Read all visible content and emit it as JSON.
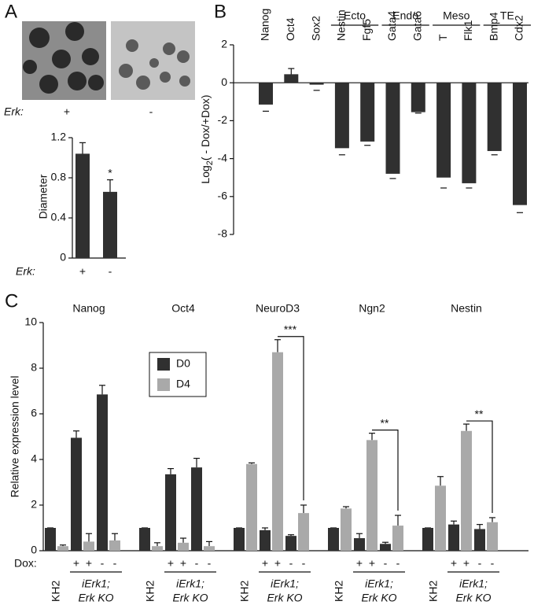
{
  "chart_data": [
    {
      "panel": "A",
      "type": "bar",
      "xlabel": "Erk:",
      "ylabel": "Diameter",
      "categories": [
        "+",
        "-"
      ],
      "values": [
        1.04,
        0.66
      ],
      "errors": [
        0.11,
        0.12
      ],
      "color": "#303030",
      "ylim": [
        0,
        1.2
      ],
      "yticks": [
        0,
        0.4,
        0.8,
        1.2
      ],
      "annotations": [
        null,
        "*"
      ]
    },
    {
      "panel": "B",
      "type": "bar",
      "ylabel_parts": [
        "Log",
        "2",
        "( - Dox/+Dox)"
      ],
      "categories": [
        "Nanog",
        "Oct4",
        "Sox2",
        "Nestin",
        "Fgf5",
        "Gata4",
        "Gata6",
        "T",
        "Flk1",
        "Bmp4",
        "Cdx2"
      ],
      "group_of": [
        null,
        null,
        null,
        "Ecto",
        "Ecto",
        "Endo",
        "Endo",
        "Meso",
        "Meso",
        "TE",
        "TE"
      ],
      "values": [
        -1.15,
        0.45,
        -0.1,
        -3.45,
        -3.1,
        -4.8,
        -1.55,
        -5.0,
        -5.3,
        -3.6,
        -6.45
      ],
      "errors": [
        0.35,
        0.3,
        0.3,
        0.35,
        0.2,
        0.25,
        0.05,
        0.55,
        0.25,
        0.2,
        0.4
      ],
      "color": "#303030",
      "ylim": [
        -8,
        2
      ],
      "yticks": [
        2,
        0,
        -2,
        -4,
        -6,
        -8
      ]
    },
    {
      "panel": "C",
      "type": "grouped_bar",
      "ylabel": "Relative expression level",
      "genes": [
        "Nanog",
        "Oct4",
        "NeuroD3",
        "Ngn2",
        "Nestin"
      ],
      "xlabel": "Dox:",
      "sample_labels": [
        "KH2",
        "+",
        "-"
      ],
      "strain_labels": [
        "iErk1;",
        "Erk KO"
      ],
      "series": [
        {
          "name": "D0",
          "color": "#303030",
          "values": [
            [
              1.0,
              4.95,
              6.85
            ],
            [
              1.0,
              3.35,
              3.65
            ],
            [
              1.0,
              0.9,
              0.65
            ],
            [
              1.0,
              0.55,
              0.3
            ],
            [
              1.0,
              1.15,
              0.95
            ]
          ],
          "errors": [
            [
              0,
              0.3,
              0.4
            ],
            [
              0,
              0.25,
              0.4
            ],
            [
              0,
              0.1,
              0.05
            ],
            [
              0,
              0.2,
              0.07
            ],
            [
              0,
              0.15,
              0.2
            ]
          ]
        },
        {
          "name": "D4",
          "color": "#a9a9a9",
          "values": [
            [
              0.2,
              0.4,
              0.45
            ],
            [
              0.2,
              0.35,
              0.2
            ],
            [
              3.8,
              8.7,
              1.65
            ],
            [
              1.85,
              4.85,
              1.1
            ],
            [
              2.85,
              5.25,
              1.25
            ]
          ],
          "errors": [
            [
              0.05,
              0.35,
              0.3
            ],
            [
              0.15,
              0.2,
              0.2
            ],
            [
              0.05,
              0.55,
              0.35
            ],
            [
              0.08,
              0.3,
              0.45
            ],
            [
              0.4,
              0.3,
              0.2
            ]
          ]
        }
      ],
      "ylim": [
        0,
        10
      ],
      "yticks": [
        0,
        2,
        4,
        6,
        8,
        10
      ],
      "significance": [
        null,
        null,
        "***",
        "**",
        "**"
      ]
    }
  ]
}
